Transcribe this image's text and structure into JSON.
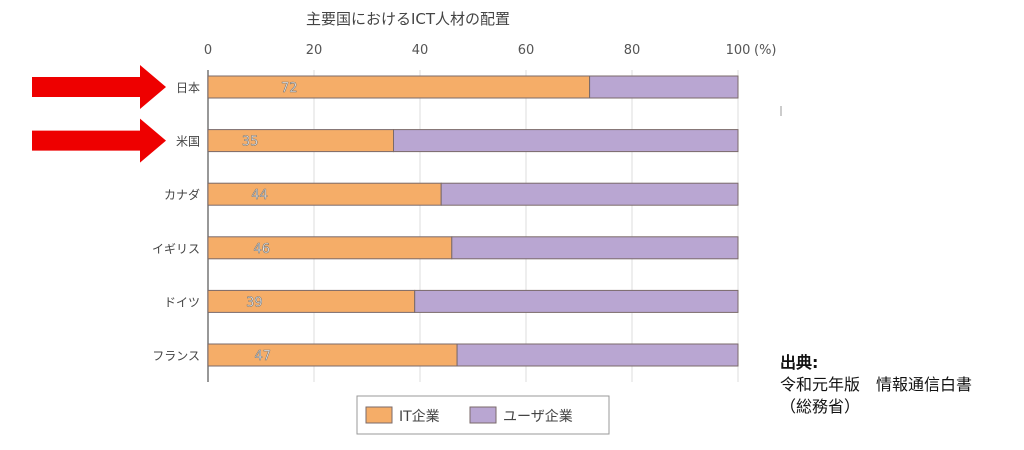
{
  "chart_data": {
    "type": "bar",
    "orientation": "horizontal",
    "stacked": true,
    "title": "主要国におけるICT人材の配置",
    "unit_label": "(%)",
    "xlim": [
      0,
      100
    ],
    "xticks": [
      "0",
      "20",
      "40",
      "60",
      "80",
      "100"
    ],
    "categories": [
      "日本",
      "米国",
      "カナダ",
      "イギリス",
      "ドイツ",
      "フランス"
    ],
    "series": [
      {
        "name": "IT企業",
        "values": [
          72,
          35,
          44,
          46,
          39,
          47
        ],
        "color": "#f5ad68"
      },
      {
        "name": "ユーザ企業",
        "values": [
          28,
          65,
          56,
          54,
          61,
          53
        ],
        "color": "#b9a6d2"
      }
    ],
    "data_labels": [
      "72",
      "35",
      "44",
      "46",
      "39",
      "47"
    ],
    "grid": true,
    "legend_position": "bottom",
    "highlighted_categories": [
      "日本",
      "米国"
    ],
    "highlight_color": "#ee0000"
  },
  "source": {
    "heading": "出典:",
    "line1": "令和元年版　情報通信白書",
    "line2": "（総務省）"
  }
}
